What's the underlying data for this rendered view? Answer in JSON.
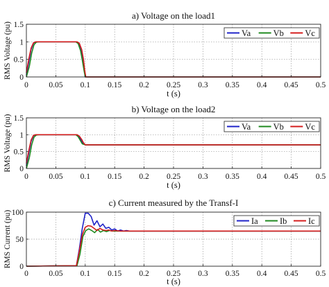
{
  "chart_data": [
    {
      "type": "line",
      "title": "a) Voltage on the load1",
      "xlabel": "t (s)",
      "ylabel": "RMS Voltage (pu)",
      "xlim": [
        0,
        0.5
      ],
      "ylim": [
        0,
        1.5
      ],
      "xticks": [
        0,
        0.05,
        0.1,
        0.15,
        0.2,
        0.25,
        0.3,
        0.35,
        0.4,
        0.45,
        0.5
      ],
      "xticklabels": [
        "0",
        "0.05",
        "0.1",
        "0.15",
        "0.2",
        "0.25",
        "0.3",
        "0.35",
        "0.4",
        "0.45",
        "0.5"
      ],
      "yticks": [
        0,
        0.5,
        1,
        1.5
      ],
      "yticklabels": [
        "0",
        "0.5",
        "1",
        "1.5"
      ],
      "grid": true,
      "legend_position": "top-right",
      "series": [
        {
          "name": "Va",
          "color": "#1f23c8",
          "x": [
            0,
            0.004,
            0.008,
            0.012,
            0.016,
            0.02,
            0.085,
            0.089,
            0.093,
            0.096,
            0.098,
            0.1,
            0.5
          ],
          "y": [
            0.05,
            0.42,
            0.78,
            0.96,
            1.0,
            1.0,
            1.0,
            0.97,
            0.8,
            0.55,
            0.25,
            0.0,
            0.0
          ]
        },
        {
          "name": "Vb",
          "color": "#1f8a1f",
          "x": [
            0,
            0.005,
            0.009,
            0.013,
            0.017,
            0.021,
            0.084,
            0.088,
            0.092,
            0.095,
            0.098,
            0.1,
            0.5
          ],
          "y": [
            0.0,
            0.3,
            0.68,
            0.92,
            0.99,
            1.0,
            1.0,
            0.95,
            0.75,
            0.48,
            0.18,
            0.0,
            0.0
          ]
        },
        {
          "name": "Vc",
          "color": "#d41c1c",
          "x": [
            0,
            0.004,
            0.008,
            0.012,
            0.016,
            0.02,
            0.086,
            0.09,
            0.094,
            0.097,
            0.099,
            0.101,
            0.5
          ],
          "y": [
            0.12,
            0.5,
            0.82,
            0.97,
            1.0,
            1.0,
            1.0,
            0.96,
            0.78,
            0.5,
            0.2,
            0.0,
            0.0
          ]
        }
      ]
    },
    {
      "type": "line",
      "title": "b) Voltage on the load2",
      "xlabel": "t (s)",
      "ylabel": "RMS Voltage (pu)",
      "xlim": [
        0,
        0.5
      ],
      "ylim": [
        0,
        1.5
      ],
      "xticks": [
        0,
        0.05,
        0.1,
        0.15,
        0.2,
        0.25,
        0.3,
        0.35,
        0.4,
        0.45,
        0.5
      ],
      "xticklabels": [
        "0",
        "0.05",
        "0.1",
        "0.15",
        "0.2",
        "0.25",
        "0.3",
        "0.35",
        "0.4",
        "0.45",
        "0.5"
      ],
      "yticks": [
        0,
        0.5,
        1,
        1.5
      ],
      "yticklabels": [
        "0",
        "0.5",
        "1",
        "1.5"
      ],
      "grid": true,
      "legend_position": "top-right",
      "series": [
        {
          "name": "Va",
          "color": "#1f23c8",
          "x": [
            0,
            0.004,
            0.008,
            0.012,
            0.016,
            0.02,
            0.085,
            0.089,
            0.093,
            0.096,
            0.1,
            0.5
          ],
          "y": [
            0.08,
            0.45,
            0.8,
            0.97,
            1.0,
            1.0,
            1.0,
            0.95,
            0.85,
            0.75,
            0.7,
            0.7
          ]
        },
        {
          "name": "Vb",
          "color": "#1f8a1f",
          "x": [
            0,
            0.005,
            0.009,
            0.013,
            0.017,
            0.021,
            0.084,
            0.088,
            0.092,
            0.095,
            0.1,
            0.5
          ],
          "y": [
            0.0,
            0.32,
            0.7,
            0.93,
            0.99,
            1.0,
            1.0,
            0.94,
            0.82,
            0.73,
            0.7,
            0.7
          ]
        },
        {
          "name": "Vc",
          "color": "#d41c1c",
          "x": [
            0,
            0.004,
            0.008,
            0.012,
            0.016,
            0.02,
            0.086,
            0.09,
            0.094,
            0.097,
            0.1,
            0.5
          ],
          "y": [
            0.15,
            0.52,
            0.84,
            0.98,
            1.0,
            1.0,
            1.0,
            0.96,
            0.86,
            0.76,
            0.7,
            0.7
          ]
        }
      ]
    },
    {
      "type": "line",
      "title": "c) Current measured by the Transf-I",
      "xlabel": "t (s)",
      "ylabel": "RMS Current (pu)",
      "xlim": [
        0,
        0.5
      ],
      "ylim": [
        0,
        100
      ],
      "xticks": [
        0,
        0.05,
        0.1,
        0.15,
        0.2,
        0.25,
        0.3,
        0.35,
        0.4,
        0.45,
        0.5
      ],
      "xticklabels": [
        "0",
        "0.05",
        "0.1",
        "0.15",
        "0.2",
        "0.25",
        "0.3",
        "0.35",
        "0.4",
        "0.45",
        "0.5"
      ],
      "yticks": [
        0,
        50,
        100
      ],
      "yticklabels": [
        "0",
        "50",
        "100"
      ],
      "grid": true,
      "legend_position": "top-right",
      "series": [
        {
          "name": "Ia",
          "color": "#1f23c8",
          "x": [
            0,
            0.085,
            0.09,
            0.095,
            0.1,
            0.105,
            0.11,
            0.115,
            0.12,
            0.125,
            0.13,
            0.135,
            0.14,
            0.145,
            0.15,
            0.155,
            0.16,
            0.165,
            0.17,
            0.175,
            0.18,
            0.2,
            0.5
          ],
          "y": [
            0,
            1,
            32,
            70,
            98,
            98,
            92,
            76,
            84,
            73,
            78,
            70,
            72,
            67,
            69,
            65,
            67,
            65,
            66,
            65,
            65,
            65,
            65
          ]
        },
        {
          "name": "Ib",
          "color": "#1f8a1f",
          "x": [
            0,
            0.086,
            0.091,
            0.096,
            0.101,
            0.106,
            0.111,
            0.116,
            0.121,
            0.126,
            0.131,
            0.136,
            0.141,
            0.146,
            0.151,
            0.16,
            0.5
          ],
          "y": [
            0,
            1,
            22,
            55,
            66,
            69,
            66,
            62,
            68,
            63,
            66,
            64,
            66,
            65,
            65,
            65,
            65
          ]
        },
        {
          "name": "Ic",
          "color": "#d41c1c",
          "x": [
            0,
            0.085,
            0.09,
            0.095,
            0.1,
            0.105,
            0.11,
            0.115,
            0.12,
            0.125,
            0.13,
            0.135,
            0.14,
            0.145,
            0.15,
            0.16,
            0.5
          ],
          "y": [
            0,
            1,
            28,
            58,
            72,
            75,
            74,
            70,
            66,
            70,
            67,
            66,
            67,
            65,
            66,
            65,
            65
          ]
        }
      ]
    }
  ]
}
